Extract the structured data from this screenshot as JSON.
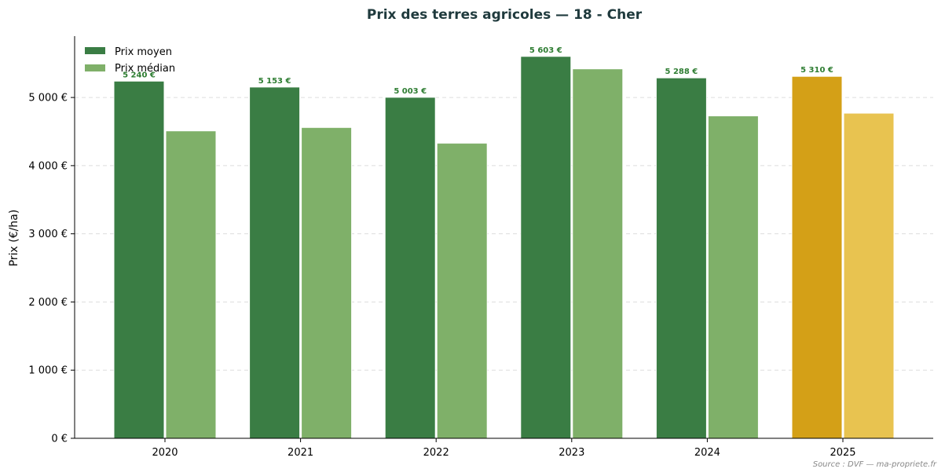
{
  "chart_data": {
    "type": "bar",
    "title": "Prix des terres agricoles — 18 - Cher",
    "xlabel": "",
    "ylabel": "Prix (€/ha)",
    "categories": [
      "2020",
      "2021",
      "2022",
      "2023",
      "2024",
      "2025"
    ],
    "series": [
      {
        "name": "Prix moyen",
        "values": [
          5240,
          5153,
          5003,
          5603,
          5288,
          5310
        ],
        "labels": [
          "5 240 €",
          "5 153 €",
          "5 003 €",
          "5 603 €",
          "5 288 €",
          "5 310 €"
        ],
        "color": "#3a7d44",
        "highlight_color": "#d4a017"
      },
      {
        "name": "Prix médian",
        "values": [
          4510,
          4560,
          4330,
          5420,
          4730,
          4770
        ],
        "color": "#7fb069",
        "highlight_color": "#e8c350"
      }
    ],
    "highlight_category": "2025",
    "ylim": [
      0,
      5900
    ],
    "yticks": [
      0,
      1000,
      2000,
      3000,
      4000,
      5000
    ],
    "ytick_labels": [
      "0 €",
      "1 000 €",
      "2 000 €",
      "3 000 €",
      "4 000 €",
      "5 000 €"
    ],
    "grid": true,
    "legend_position": "top-left"
  },
  "source": "Source : DVF — ma-propriete.fr"
}
